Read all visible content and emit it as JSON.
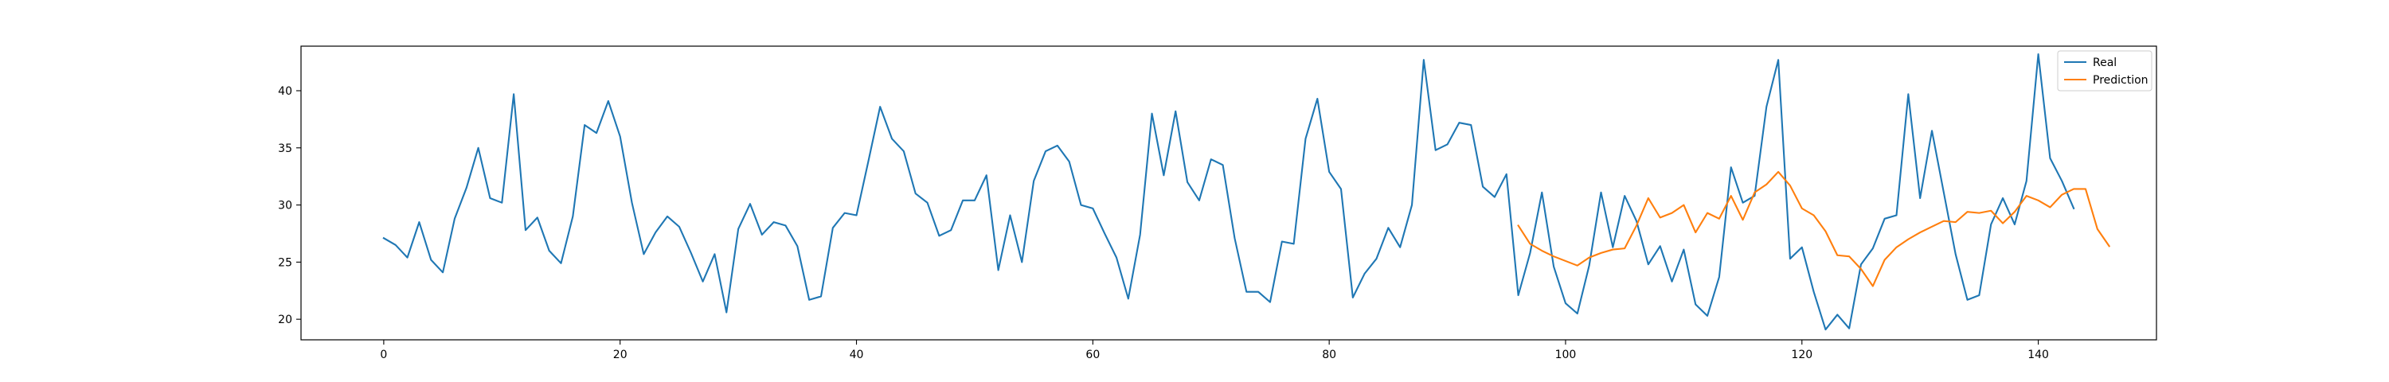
{
  "chart_data": {
    "type": "line",
    "grid": false,
    "legend_position": "top-right",
    "xlim": [
      -7,
      150
    ],
    "ylim": [
      18.2,
      43.9
    ],
    "xticks": [
      0,
      20,
      40,
      60,
      80,
      100,
      120,
      140
    ],
    "yticks": [
      20,
      25,
      30,
      35,
      40
    ],
    "xtick_labels": [
      "0",
      "20",
      "40",
      "60",
      "80",
      "100",
      "120",
      "140"
    ],
    "ytick_labels": [
      "20",
      "25",
      "30",
      "35",
      "40"
    ],
    "series": [
      {
        "name": "Real",
        "color": "#1f77b4",
        "x_start": 0,
        "values": [
          27.1,
          26.5,
          25.4,
          28.5,
          25.2,
          24.1,
          28.8,
          31.5,
          35.0,
          30.6,
          30.2,
          39.7,
          27.8,
          28.9,
          26.0,
          24.9,
          29.0,
          37.0,
          36.3,
          39.1,
          36.0,
          30.2,
          25.7,
          27.6,
          29.0,
          28.1,
          25.8,
          23.3,
          25.7,
          20.6,
          27.9,
          30.1,
          27.4,
          28.5,
          28.2,
          26.4,
          21.7,
          22.0,
          28.0,
          29.3,
          29.1,
          33.8,
          38.6,
          35.8,
          34.7,
          31.0,
          30.2,
          27.3,
          27.8,
          30.4,
          30.4,
          32.6,
          24.3,
          29.1,
          25.0,
          32.1,
          34.7,
          35.2,
          33.8,
          30.0,
          29.7,
          27.5,
          25.4,
          21.8,
          27.4,
          38.0,
          32.6,
          38.2,
          32.0,
          30.4,
          34.0,
          33.5,
          27.1,
          22.4,
          22.4,
          21.5,
          26.8,
          26.6,
          35.8,
          39.3,
          32.9,
          31.4,
          21.9,
          24.0,
          25.3,
          28.0,
          26.3,
          30.0,
          42.7,
          34.8,
          35.3,
          37.2,
          37.0,
          31.6,
          30.7,
          32.7,
          22.1,
          25.8,
          31.1,
          24.6,
          21.4,
          20.5,
          24.7,
          31.1,
          26.3,
          30.8,
          28.6,
          24.8,
          26.4,
          23.3,
          26.1,
          21.3,
          20.3,
          23.7,
          33.3,
          30.2,
          30.8,
          38.6,
          42.7,
          25.3,
          26.3,
          22.4,
          19.1,
          20.4,
          19.2,
          24.8,
          26.2,
          28.8,
          29.1,
          39.7,
          30.6,
          36.5,
          31.1,
          25.7,
          21.7,
          22.1,
          28.3,
          30.6,
          28.3,
          32.1,
          43.2,
          34.1,
          32.1,
          29.7
        ]
      },
      {
        "name": "Prediction",
        "color": "#ff7f0e",
        "x_start": 96,
        "values": [
          28.2,
          26.6,
          26.0,
          25.5,
          25.1,
          24.7,
          25.4,
          25.8,
          26.1,
          26.2,
          28.2,
          30.6,
          28.9,
          29.3,
          30.0,
          27.6,
          29.3,
          28.8,
          30.8,
          28.7,
          31.1,
          31.8,
          32.9,
          31.7,
          29.7,
          29.1,
          27.7,
          25.6,
          25.5,
          24.4,
          22.9,
          25.2,
          26.3,
          27.0,
          27.6,
          28.1,
          28.6,
          28.5,
          29.4,
          29.3,
          29.5,
          28.4,
          29.4,
          30.8,
          30.4,
          29.8,
          30.9,
          31.4,
          31.4,
          27.9,
          26.4
        ]
      }
    ]
  }
}
